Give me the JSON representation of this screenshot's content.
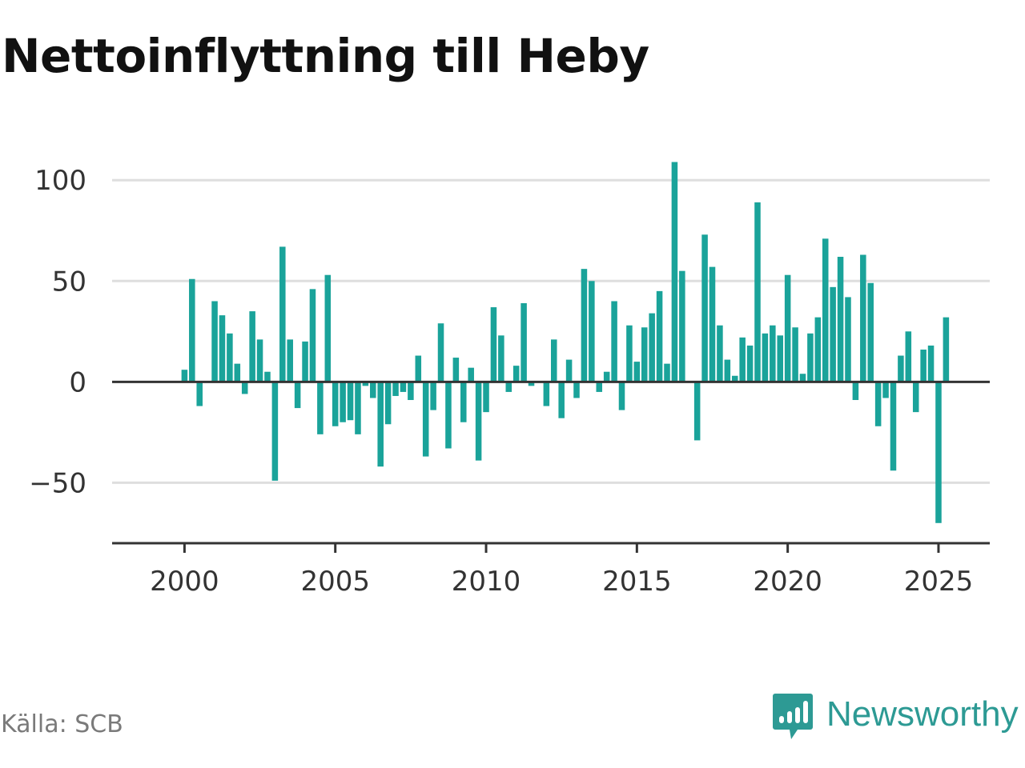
{
  "chart_data": {
    "type": "bar",
    "title": "Nettoinflyttning till Heby",
    "xlabel": "",
    "ylabel": "",
    "source": "Källa: SCB",
    "brand": "Newsworthy",
    "bar_color": "#1aa39a",
    "xlim": [
      1997.6,
      2026.7
    ],
    "ylim": [
      -80,
      110
    ],
    "yticks": [
      -50,
      0,
      50,
      100
    ],
    "ytick_labels": [
      "−50",
      "0",
      "50",
      "100"
    ],
    "xticks": [
      2000,
      2005,
      2010,
      2015,
      2020,
      2025
    ],
    "xtick_labels": [
      "2000",
      "2005",
      "2010",
      "2015",
      "2020",
      "2025"
    ],
    "grid": true,
    "x": [
      "2000-Q1",
      "2000-Q2",
      "2000-Q3",
      "2000-Q4",
      "2001-Q1",
      "2001-Q2",
      "2001-Q3",
      "2001-Q4",
      "2002-Q1",
      "2002-Q2",
      "2002-Q3",
      "2002-Q4",
      "2003-Q1",
      "2003-Q2",
      "2003-Q3",
      "2003-Q4",
      "2004-Q1",
      "2004-Q2",
      "2004-Q3",
      "2004-Q4",
      "2005-Q1",
      "2005-Q2",
      "2005-Q3",
      "2005-Q4",
      "2006-Q1",
      "2006-Q2",
      "2006-Q3",
      "2006-Q4",
      "2007-Q1",
      "2007-Q2",
      "2007-Q3",
      "2007-Q4",
      "2008-Q1",
      "2008-Q2",
      "2008-Q3",
      "2008-Q4",
      "2009-Q1",
      "2009-Q2",
      "2009-Q3",
      "2009-Q4",
      "2010-Q1",
      "2010-Q2",
      "2010-Q3",
      "2010-Q4",
      "2011-Q1",
      "2011-Q2",
      "2011-Q3",
      "2011-Q4",
      "2012-Q1",
      "2012-Q2",
      "2012-Q3",
      "2012-Q4",
      "2013-Q1",
      "2013-Q2",
      "2013-Q3",
      "2013-Q4",
      "2014-Q1",
      "2014-Q2",
      "2014-Q3",
      "2014-Q4",
      "2015-Q1",
      "2015-Q2",
      "2015-Q3",
      "2015-Q4",
      "2016-Q1",
      "2016-Q2",
      "2016-Q3",
      "2016-Q4",
      "2017-Q1",
      "2017-Q2",
      "2017-Q3",
      "2017-Q4",
      "2018-Q1",
      "2018-Q2",
      "2018-Q3",
      "2018-Q4",
      "2019-Q1",
      "2019-Q2",
      "2019-Q3",
      "2019-Q4",
      "2020-Q1",
      "2020-Q2",
      "2020-Q3",
      "2020-Q4",
      "2021-Q1",
      "2021-Q2",
      "2021-Q3",
      "2021-Q4",
      "2022-Q1",
      "2022-Q2",
      "2022-Q3",
      "2022-Q4",
      "2023-Q1",
      "2023-Q2",
      "2023-Q3",
      "2023-Q4",
      "2024-Q1",
      "2024-Q2",
      "2024-Q3",
      "2024-Q4",
      "2025-Q1",
      "2025-Q2"
    ],
    "values": [
      6,
      51,
      -12,
      0,
      40,
      33,
      24,
      9,
      -6,
      35,
      21,
      5,
      -49,
      67,
      21,
      -13,
      20,
      46,
      -26,
      53,
      -22,
      -20,
      -19,
      -26,
      -2,
      -8,
      -42,
      -21,
      -7,
      -5,
      -9,
      13,
      -37,
      -14,
      29,
      -33,
      12,
      -20,
      7,
      -39,
      -15,
      37,
      23,
      -5,
      8,
      39,
      -2,
      0,
      -12,
      21,
      -18,
      11,
      -8,
      56,
      50,
      -5,
      5,
      40,
      -14,
      28,
      10,
      27,
      34,
      45,
      9,
      109,
      55,
      0,
      -29,
      73,
      57,
      28,
      11,
      3,
      22,
      18,
      89,
      24,
      28,
      23,
      53,
      27,
      4,
      24,
      32,
      71,
      47,
      62,
      42,
      -9,
      63,
      49,
      -22,
      -8,
      -44,
      13,
      25,
      -15,
      16,
      18,
      -70,
      32
    ]
  }
}
